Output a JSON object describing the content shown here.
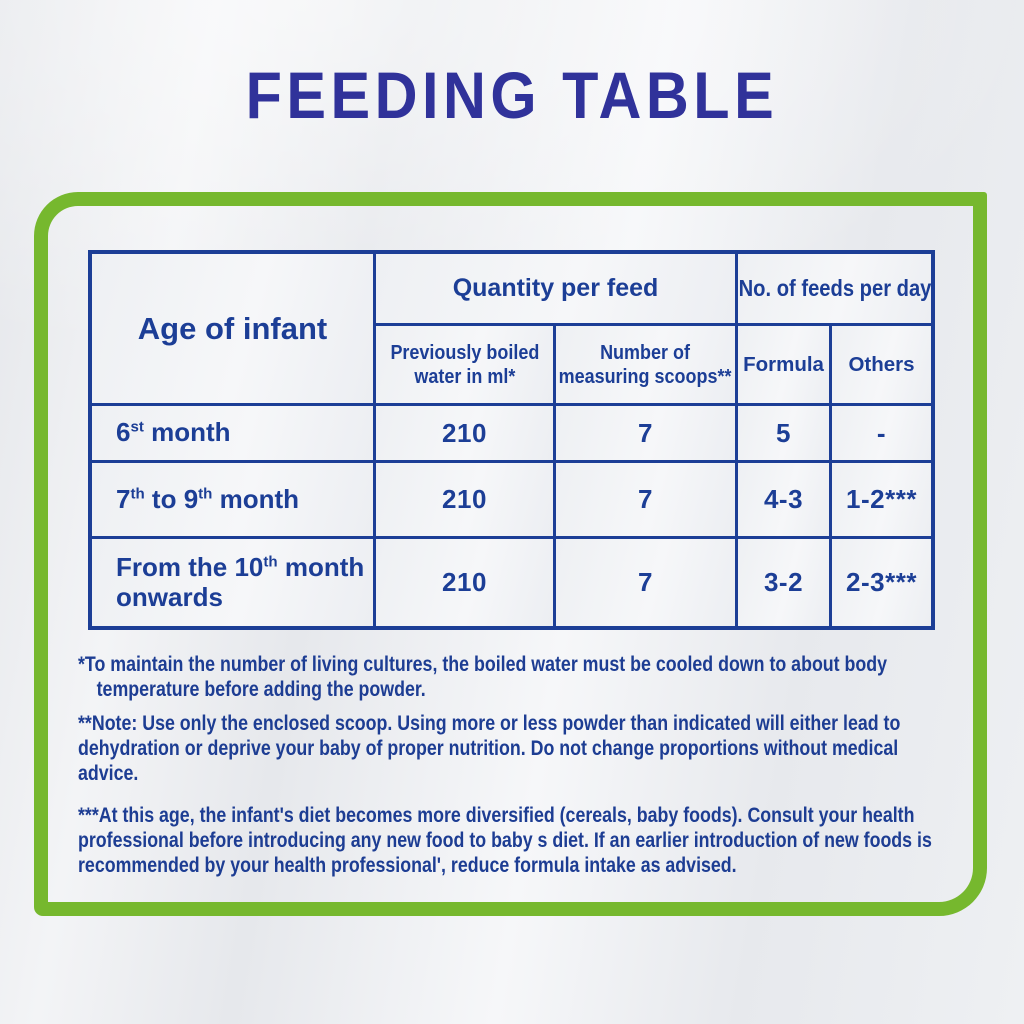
{
  "title": "FEEDING TABLE",
  "colors": {
    "title_blue": "#30329a",
    "table_blue": "#1c3e96",
    "panel_green": "#76b82e"
  },
  "table": {
    "headers": {
      "age": "Age of infant",
      "quantity_group": "Quantity per feed",
      "feeds_group": "No. of feeds per day",
      "water": "Previously boiled water in ml*",
      "scoops": "Number of measuring scoops**",
      "formula": "Formula",
      "others": "Others"
    },
    "rows": [
      {
        "a1": "6",
        "s1": "st",
        "a2": " month",
        "s2": "",
        "a3": "",
        "water": "210",
        "scoops": "7",
        "formula": "5",
        "others": "-"
      },
      {
        "a1": "7",
        "s1": "th",
        "a2": " to 9",
        "s2": "th",
        "a3": " month",
        "water": "210",
        "scoops": "7",
        "formula": "4-3",
        "others": "1-2***"
      },
      {
        "a1": "From the 10",
        "s1": "th",
        "a2": " month onwards",
        "s2": "",
        "a3": "",
        "water": "210",
        "scoops": "7",
        "formula": "3-2",
        "others": "2-3***"
      }
    ]
  },
  "footnotes": [
    "*To maintain the number of living cultures, the boiled water must be cooled down to about body temperature before adding the powder.",
    "**Note: Use only the enclosed scoop. Using more or less powder than indicated will either lead to dehydration or deprive your baby of proper nutrition. Do not change proportions without medical advice.",
    "***At this age, the infant's diet becomes more diversified (cereals, baby foods). Consult your health professional before introducing any new food to baby s diet. If an earlier introduction of new foods is recommended by your health professional', reduce formula intake as advised."
  ]
}
